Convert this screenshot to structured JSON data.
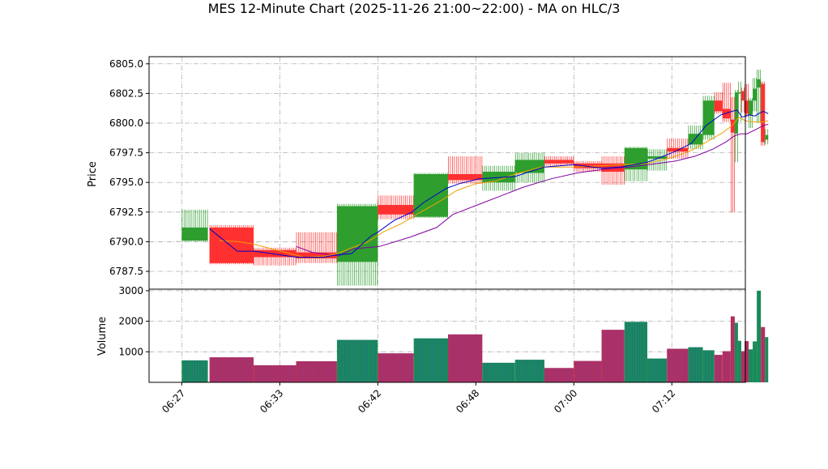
{
  "chart_data": {
    "type": "candlestick",
    "title": "MES 12-Minute Chart (2025-11-26 21:00~22:00) - MA on HLC/3",
    "price_panel": {
      "ylabel": "Price",
      "ylim": [
        6786.0,
        6805.6
      ],
      "yticks": [
        6787.5,
        6790.0,
        6792.5,
        6795.0,
        6797.5,
        6800.0,
        6802.5,
        6805.0
      ],
      "ytick_labels": [
        "6787.5",
        "6790.0",
        "6792.5",
        "6795.0",
        "6797.5",
        "6800.0",
        "6802.5",
        "6805.0"
      ]
    },
    "volume_panel": {
      "ylabel": "Volume",
      "ylim": [
        0,
        3050
      ],
      "yticks": [
        1000,
        2000,
        3000
      ],
      "ytick_labels": [
        "1000",
        "2000",
        "3000"
      ]
    },
    "x_axis": {
      "xlim": [
        -2,
        34.5
      ],
      "tick_positions": [
        0,
        6,
        12,
        18,
        24,
        30,
        36
      ],
      "tick_labels": [
        "06:27",
        "06:33",
        "06:42",
        "06:48",
        "07:00",
        "07:12",
        ""
      ]
    },
    "grid": true,
    "colors": {
      "up": "#2e9e2e",
      "down": "#ff3030",
      "ma_fast": "#0000cc",
      "ma_mid": "#f0a000",
      "ma_slow": "#8000a0",
      "vol_up": "#1a8a5a",
      "vol_down": "#b03060"
    },
    "candles": [
      {
        "x0": 0.0,
        "x1": 1.6,
        "open": 6790.1,
        "high": 6792.7,
        "low": 6790.0,
        "close": 6791.2,
        "volume": 720
      },
      {
        "x0": 1.7,
        "x1": 4.4,
        "open": 6791.2,
        "high": 6791.4,
        "low": 6788.1,
        "close": 6788.2,
        "volume": 820
      },
      {
        "x0": 4.4,
        "x1": 7.0,
        "open": 6789.3,
        "high": 6789.5,
        "low": 6788.0,
        "close": 6788.7,
        "volume": 560
      },
      {
        "x0": 7.0,
        "x1": 9.5,
        "open": 6789.1,
        "high": 6790.8,
        "low": 6788.2,
        "close": 6788.6,
        "volume": 690
      },
      {
        "x0": 9.5,
        "x1": 12.0,
        "open": 6788.3,
        "high": 6793.2,
        "low": 6786.3,
        "close": 6793.0,
        "volume": 1390
      },
      {
        "x0": 12.0,
        "x1": 14.2,
        "open": 6793.1,
        "high": 6793.9,
        "low": 6791.9,
        "close": 6792.3,
        "volume": 950
      },
      {
        "x0": 14.2,
        "x1": 16.3,
        "open": 6792.1,
        "high": 6795.8,
        "low": 6792.0,
        "close": 6795.7,
        "volume": 1440
      },
      {
        "x0": 16.3,
        "x1": 18.4,
        "open": 6795.7,
        "high": 6797.2,
        "low": 6794.9,
        "close": 6795.2,
        "volume": 1570
      },
      {
        "x0": 18.4,
        "x1": 20.4,
        "open": 6795.0,
        "high": 6796.4,
        "low": 6794.3,
        "close": 6795.9,
        "volume": 640
      },
      {
        "x0": 20.4,
        "x1": 22.2,
        "open": 6795.8,
        "high": 6797.5,
        "low": 6795.0,
        "close": 6796.9,
        "volume": 740
      },
      {
        "x0": 22.2,
        "x1": 24.0,
        "open": 6796.9,
        "high": 6797.2,
        "low": 6796.4,
        "close": 6796.6,
        "volume": 470
      },
      {
        "x0": 24.0,
        "x1": 25.7,
        "open": 6796.6,
        "high": 6796.8,
        "low": 6795.9,
        "close": 6796.2,
        "volume": 700
      },
      {
        "x0": 25.7,
        "x1": 27.1,
        "open": 6796.6,
        "high": 6797.2,
        "low": 6794.8,
        "close": 6795.9,
        "volume": 1720
      },
      {
        "x0": 27.1,
        "x1": 28.5,
        "open": 6796.1,
        "high": 6798.0,
        "low": 6795.1,
        "close": 6797.9,
        "volume": 1980
      },
      {
        "x0": 28.5,
        "x1": 29.7,
        "open": 6797.0,
        "high": 6797.8,
        "low": 6796.0,
        "close": 6797.2,
        "volume": 780
      },
      {
        "x0": 29.7,
        "x1": 31.0,
        "open": 6797.9,
        "high": 6798.7,
        "low": 6797.0,
        "close": 6797.6,
        "volume": 1100
      },
      {
        "x0": 31.0,
        "x1": 31.9,
        "open": 6798.2,
        "high": 6799.8,
        "low": 6797.8,
        "close": 6799.1,
        "volume": 1150
      },
      {
        "x0": 31.9,
        "x1": 32.6,
        "open": 6799.0,
        "high": 6802.3,
        "low": 6798.6,
        "close": 6801.9,
        "volume": 1050
      },
      {
        "x0": 32.6,
        "x1": 33.1,
        "open": 6801.9,
        "high": 6802.6,
        "low": 6800.8,
        "close": 6801.0,
        "volume": 900
      },
      {
        "x0": 33.1,
        "x1": 33.6,
        "open": 6801.2,
        "high": 6803.4,
        "low": 6800.1,
        "close": 6800.4,
        "volume": 1020
      },
      {
        "x0": 33.6,
        "x1": 33.85,
        "open": 6800.3,
        "high": 6802.2,
        "low": 6792.5,
        "close": 6799.2,
        "volume": 2160
      },
      {
        "x0": 33.85,
        "x1": 34.05,
        "open": 6799.1,
        "high": 6802.8,
        "low": 6796.7,
        "close": 6802.6,
        "volume": 1950
      },
      {
        "x0": 34.05,
        "x1": 34.25,
        "open": 6802.5,
        "high": 6803.5,
        "low": 6800.1,
        "close": 6802.6,
        "volume": 1360
      },
      {
        "x0": 34.25,
        "x1": 34.45,
        "open": 6802.7,
        "high": 6803.0,
        "low": 6800.9,
        "close": 6801.9,
        "volume": 1020
      },
      {
        "x0": 34.45,
        "x1": 34.7,
        "open": 6801.9,
        "high": 6803.3,
        "low": 6800.5,
        "close": 6800.8,
        "volume": 1350
      },
      {
        "x0": 34.7,
        "x1": 34.95,
        "open": 6800.7,
        "high": 6802.1,
        "low": 6799.6,
        "close": 6801.9,
        "volume": 1080
      },
      {
        "x0": 34.95,
        "x1": 35.2,
        "open": 6801.9,
        "high": 6803.8,
        "low": 6801.0,
        "close": 6802.9,
        "volume": 1340
      },
      {
        "x0": 35.2,
        "x1": 35.45,
        "open": 6803.0,
        "high": 6804.5,
        "low": 6800.0,
        "close": 6803.7,
        "volume": 3000
      },
      {
        "x0": 35.45,
        "x1": 35.7,
        "open": 6803.3,
        "high": 6803.5,
        "low": 6798.1,
        "close": 6798.4,
        "volume": 1810
      },
      {
        "x0": 35.7,
        "x1": 35.9,
        "open": 6798.6,
        "high": 6799.5,
        "low": 6798.2,
        "close": 6799.0,
        "volume": 1480
      }
    ],
    "ma_fast": [
      [
        1.7,
        6791.1
      ],
      [
        3.4,
        6789.2
      ],
      [
        4.4,
        6789.2
      ],
      [
        5.0,
        6789.1
      ],
      [
        7.0,
        6788.7
      ],
      [
        8.7,
        6788.7
      ],
      [
        9.5,
        6788.9
      ],
      [
        10.4,
        6789.0
      ],
      [
        11.6,
        6790.5
      ],
      [
        12.0,
        6790.8
      ],
      [
        13.0,
        6791.8
      ],
      [
        14.1,
        6792.5
      ],
      [
        14.8,
        6793.3
      ],
      [
        16.2,
        6794.5
      ],
      [
        17.0,
        6794.9
      ],
      [
        18.2,
        6795.3
      ],
      [
        20.4,
        6795.5
      ],
      [
        22.2,
        6796.3
      ],
      [
        24.0,
        6796.5
      ],
      [
        25.7,
        6796.2
      ],
      [
        26.9,
        6796.3
      ],
      [
        28.5,
        6796.7
      ],
      [
        29.1,
        6797.0
      ],
      [
        30.2,
        6797.6
      ],
      [
        31.2,
        6798.3
      ],
      [
        32.1,
        6799.8
      ],
      [
        33.0,
        6800.7
      ],
      [
        33.7,
        6801.0
      ],
      [
        34.0,
        6801.1
      ],
      [
        34.3,
        6800.5
      ],
      [
        34.7,
        6800.7
      ],
      [
        35.1,
        6800.6
      ],
      [
        35.3,
        6800.8
      ],
      [
        35.6,
        6801.0
      ],
      [
        35.9,
        6800.8
      ]
    ],
    "ma_mid": [
      [
        2.3,
        6790.1
      ],
      [
        3.5,
        6790.0
      ],
      [
        4.4,
        6789.8
      ],
      [
        6.9,
        6788.9
      ],
      [
        7.5,
        6788.7
      ],
      [
        8.8,
        6788.8
      ],
      [
        9.5,
        6789.0
      ],
      [
        11.4,
        6790.0
      ],
      [
        12.3,
        6790.8
      ],
      [
        13.4,
        6791.5
      ],
      [
        14.5,
        6792.4
      ],
      [
        15.8,
        6793.4
      ],
      [
        16.8,
        6794.3
      ],
      [
        18.0,
        6794.9
      ],
      [
        19.2,
        6795.1
      ],
      [
        20.4,
        6795.7
      ],
      [
        22.0,
        6796.3
      ],
      [
        24.0,
        6796.3
      ],
      [
        25.5,
        6796.4
      ],
      [
        27.0,
        6796.5
      ],
      [
        28.5,
        6796.6
      ],
      [
        30.0,
        6797.1
      ],
      [
        31.2,
        6797.7
      ],
      [
        32.1,
        6798.4
      ],
      [
        33.0,
        6799.1
      ],
      [
        33.7,
        6799.8
      ],
      [
        34.1,
        6800.5
      ],
      [
        34.5,
        6800.2
      ],
      [
        34.9,
        6800.1
      ],
      [
        35.3,
        6800.1
      ],
      [
        35.6,
        6800.1
      ],
      [
        35.9,
        6800.2
      ]
    ],
    "ma_slow": [
      [
        7.0,
        6789.6
      ],
      [
        8.0,
        6789.1
      ],
      [
        9.6,
        6788.8
      ],
      [
        10.5,
        6789.4
      ],
      [
        12.1,
        6789.6
      ],
      [
        14.0,
        6790.4
      ],
      [
        15.6,
        6791.2
      ],
      [
        16.6,
        6792.3
      ],
      [
        18.1,
        6793.1
      ],
      [
        19.6,
        6793.9
      ],
      [
        20.9,
        6794.6
      ],
      [
        22.6,
        6795.3
      ],
      [
        24.2,
        6795.8
      ],
      [
        25.8,
        6796.1
      ],
      [
        27.4,
        6796.3
      ],
      [
        28.6,
        6796.5
      ],
      [
        30.2,
        6796.8
      ],
      [
        31.4,
        6797.2
      ],
      [
        32.5,
        6797.8
      ],
      [
        33.3,
        6798.4
      ],
      [
        33.8,
        6798.9
      ],
      [
        34.2,
        6799.1
      ],
      [
        34.6,
        6799.1
      ],
      [
        35.2,
        6799.5
      ],
      [
        35.6,
        6799.8
      ],
      [
        35.9,
        6799.9
      ]
    ]
  }
}
